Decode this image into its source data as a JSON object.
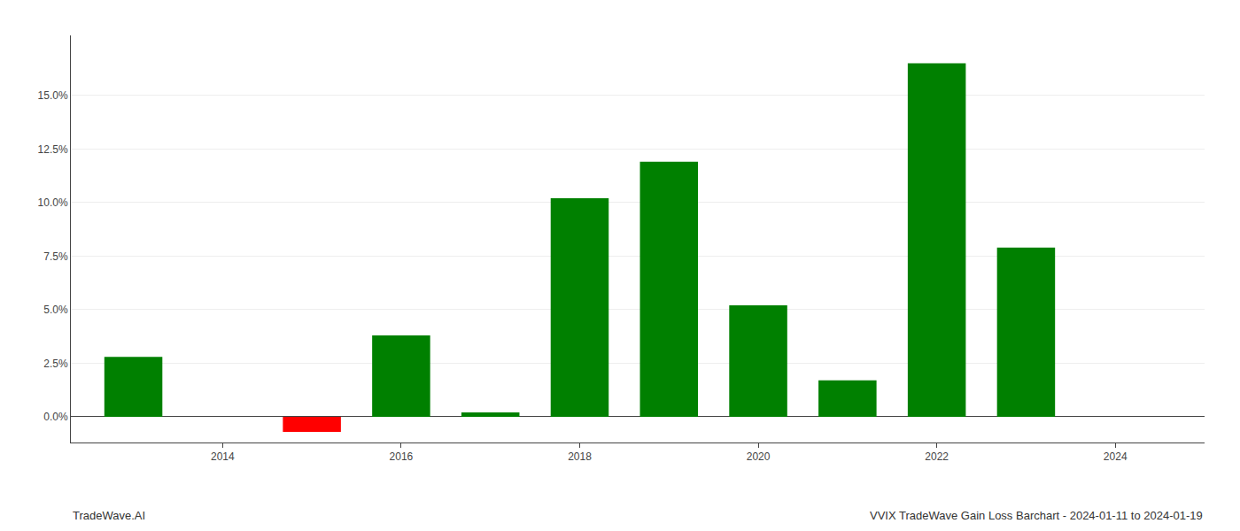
{
  "chart_data": {
    "type": "bar",
    "x": [
      2013,
      2015,
      2016,
      2017,
      2018,
      2019,
      2020,
      2021,
      2022,
      2023
    ],
    "values": [
      0.028,
      -0.007,
      0.038,
      0.002,
      0.102,
      0.119,
      0.052,
      0.017,
      0.165,
      0.079
    ],
    "colors": [
      "#008000",
      "#ff0000",
      "#008000",
      "#008000",
      "#008000",
      "#008000",
      "#008000",
      "#008000",
      "#008000",
      "#008000"
    ],
    "xlim": [
      2012.3,
      2025.0
    ],
    "xticks": [
      2014,
      2016,
      2018,
      2020,
      2022,
      2024
    ],
    "ylim": [
      -0.012,
      0.178
    ],
    "yticks": [
      {
        "value": 0.0,
        "label": "0.0%"
      },
      {
        "value": 0.025,
        "label": "2.5%"
      },
      {
        "value": 0.05,
        "label": "5.0%"
      },
      {
        "value": 0.075,
        "label": "7.5%"
      },
      {
        "value": 0.1,
        "label": "10.0%"
      },
      {
        "value": 0.125,
        "label": "12.5%"
      },
      {
        "value": 0.15,
        "label": "15.0%"
      }
    ],
    "grid": "y",
    "annotations": [
      "TradeWave.AI",
      "VVIX TradeWave Gain Loss Barchart - 2024-01-11 to 2024-01-19"
    ]
  }
}
